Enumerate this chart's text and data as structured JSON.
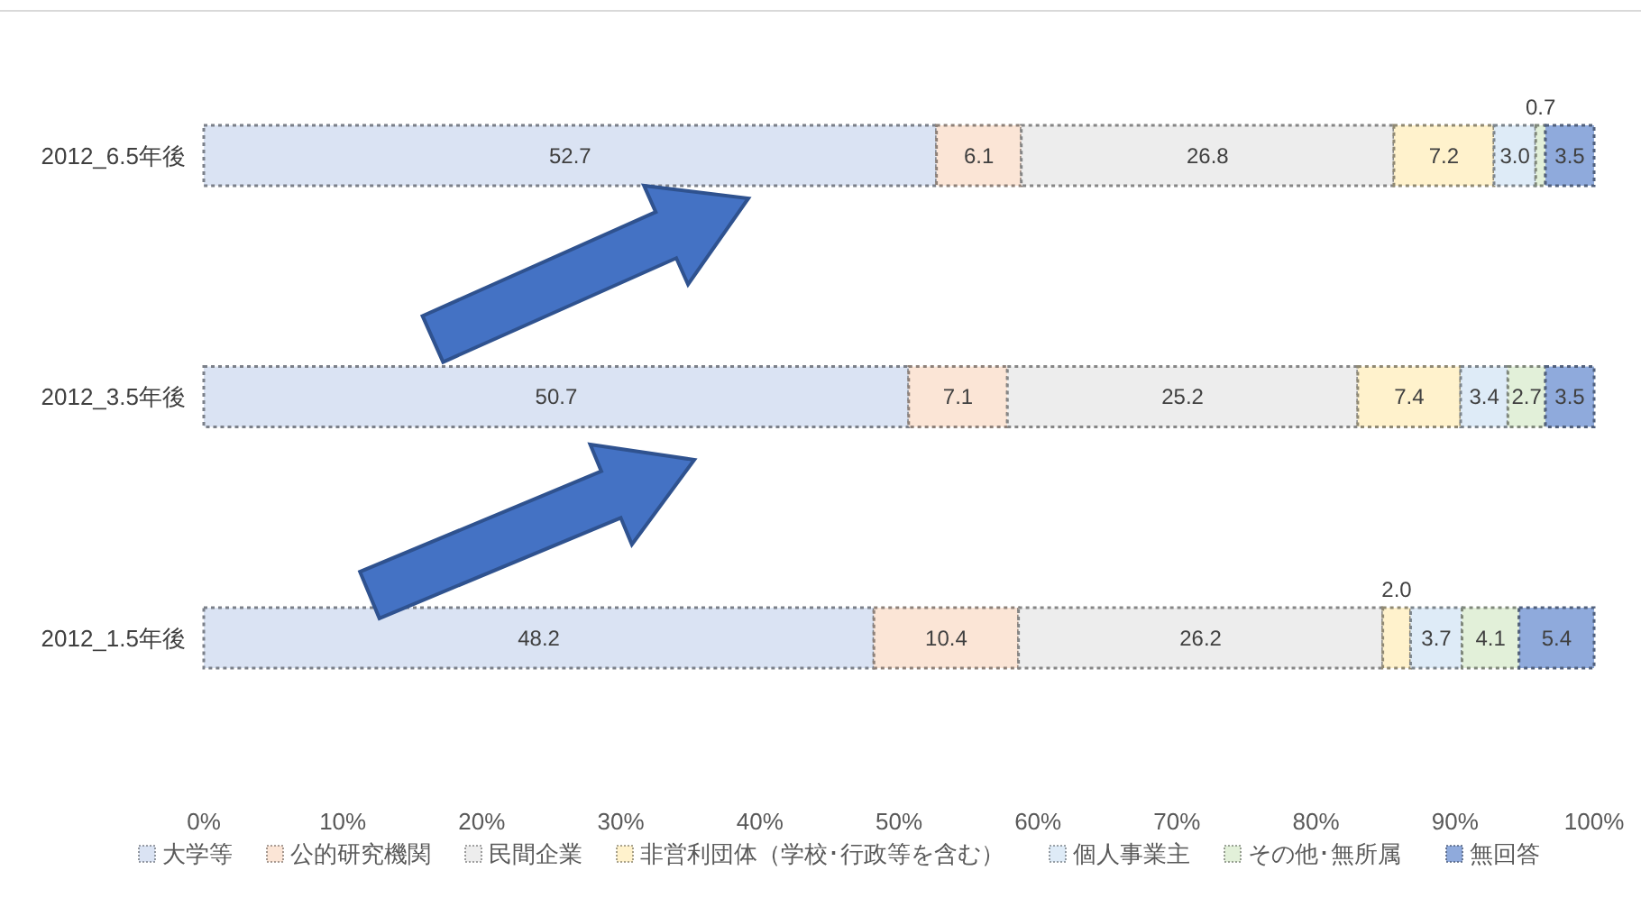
{
  "chart_data": {
    "type": "bar",
    "orientation": "horizontal",
    "stacked": true,
    "categories": [
      "2012_6.5年後",
      "2012_3.5年後",
      "2012_1.5年後"
    ],
    "xlim": [
      0,
      100
    ],
    "xticks": [
      {
        "value": 0,
        "label": "0%"
      },
      {
        "value": 10,
        "label": "10%"
      },
      {
        "value": 20,
        "label": "20%"
      },
      {
        "value": 30,
        "label": "30%"
      },
      {
        "value": 40,
        "label": "40%"
      },
      {
        "value": 50,
        "label": "50%"
      },
      {
        "value": 60,
        "label": "60%"
      },
      {
        "value": 70,
        "label": "70%"
      },
      {
        "value": 80,
        "label": "80%"
      },
      {
        "value": 90,
        "label": "90%"
      },
      {
        "value": 100,
        "label": "100%"
      }
    ],
    "series": [
      {
        "name": "大学等",
        "color": "#dae3f3",
        "values": [
          52.7,
          50.7,
          48.2
        ],
        "value_labels": [
          "52.7",
          "50.7",
          "48.2"
        ]
      },
      {
        "name": "公的研究機関",
        "color": "#fbe5d6",
        "values": [
          6.1,
          7.1,
          10.4
        ],
        "value_labels": [
          "6.1",
          "7.1",
          "10.4"
        ]
      },
      {
        "name": "民間企業",
        "color": "#ededed",
        "values": [
          26.8,
          25.2,
          26.2
        ],
        "value_labels": [
          "26.8",
          "25.2",
          "26.2"
        ]
      },
      {
        "name": "非営利団体（学校･行政等を含む）",
        "color": "#fff2cc",
        "values": [
          7.2,
          7.4,
          2.0
        ],
        "value_labels": [
          "7.2",
          "7.4",
          "2.0"
        ]
      },
      {
        "name": "個人事業主",
        "color": "#deebf7",
        "values": [
          3.0,
          3.4,
          3.7
        ],
        "value_labels": [
          "3.0",
          "3.4",
          "3.7"
        ]
      },
      {
        "name": "その他･無所属",
        "color": "#e2f0d9",
        "values": [
          0.7,
          2.7,
          4.1
        ],
        "value_labels": [
          "0.7",
          "2.7",
          "4.1"
        ]
      },
      {
        "name": "無回答",
        "color": "#8faadc",
        "values": [
          3.5,
          3.5,
          5.4
        ],
        "value_labels": [
          "3.5",
          "3.5",
          "5.4"
        ]
      }
    ],
    "grid": false,
    "legend": "bottom"
  }
}
